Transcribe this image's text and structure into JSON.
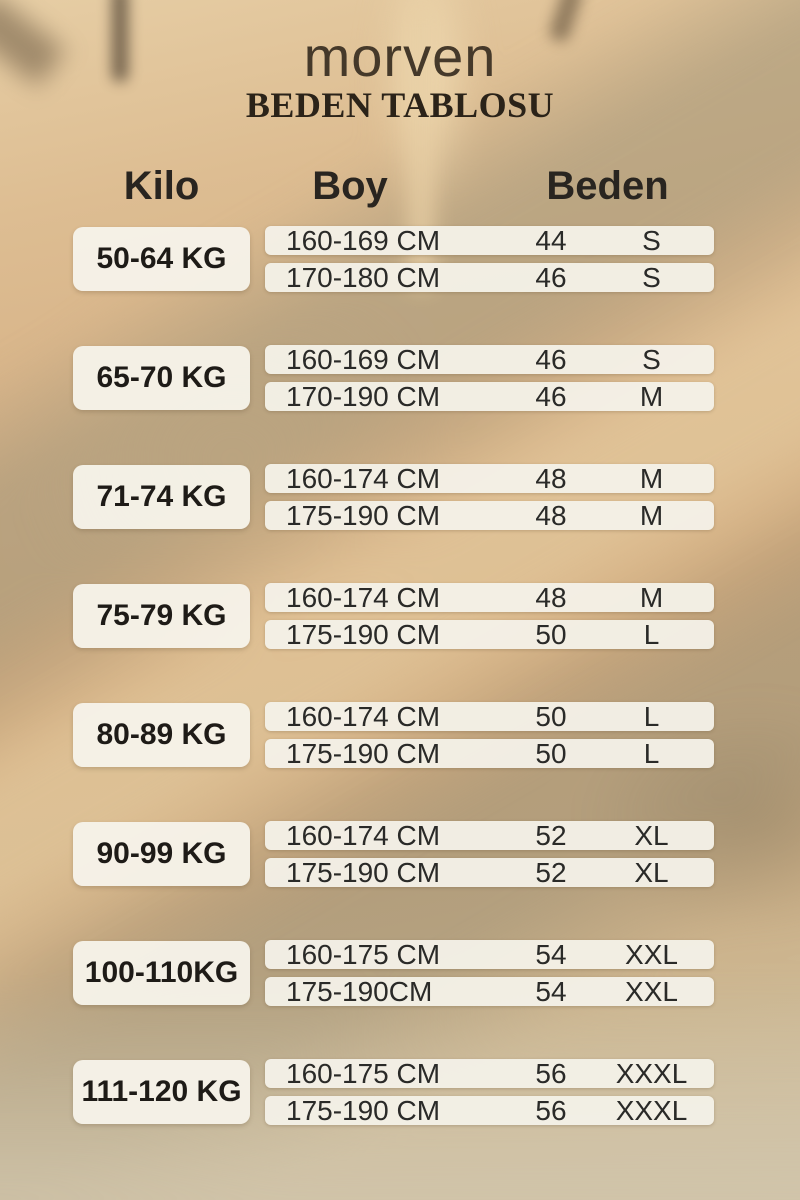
{
  "brand": "morven",
  "title": "BEDEN TABLOSU",
  "columns": {
    "kilo": "Kilo",
    "boy": "Boy",
    "beden": "Beden"
  },
  "table": {
    "headers": [
      "Kilo",
      "Boy",
      "Beden (numeric)",
      "Beden (letter)"
    ],
    "groups": [
      {
        "kilo": "50-64 KG",
        "rows": [
          {
            "boy": "160-169 CM",
            "size": "44",
            "beden": "S"
          },
          {
            "boy": "170-180 CM",
            "size": "46",
            "beden": "S"
          }
        ]
      },
      {
        "kilo": "65-70 KG",
        "rows": [
          {
            "boy": "160-169 CM",
            "size": "46",
            "beden": "S"
          },
          {
            "boy": "170-190 CM",
            "size": "46",
            "beden": "M"
          }
        ]
      },
      {
        "kilo": "71-74 KG",
        "rows": [
          {
            "boy": "160-174 CM",
            "size": "48",
            "beden": "M"
          },
          {
            "boy": "175-190 CM",
            "size": "48",
            "beden": "M"
          }
        ]
      },
      {
        "kilo": "75-79 KG",
        "rows": [
          {
            "boy": "160-174 CM",
            "size": "48",
            "beden": "M"
          },
          {
            "boy": "175-190 CM",
            "size": "50",
            "beden": "L"
          }
        ]
      },
      {
        "kilo": "80-89 KG",
        "rows": [
          {
            "boy": "160-174 CM",
            "size": "50",
            "beden": "L"
          },
          {
            "boy": "175-190 CM",
            "size": "50",
            "beden": "L"
          }
        ]
      },
      {
        "kilo": "90-99 KG",
        "rows": [
          {
            "boy": "160-174 CM",
            "size": "52",
            "beden": "XL"
          },
          {
            "boy": "175-190 CM",
            "size": "52",
            "beden": "XL"
          }
        ]
      },
      {
        "kilo": "100-110KG",
        "rows": [
          {
            "boy": "160-175 CM",
            "size": "54",
            "beden": "XXL"
          },
          {
            "boy": "175-190CM",
            "size": "54",
            "beden": "XXL"
          }
        ]
      },
      {
        "kilo": "111-120 KG",
        "rows": [
          {
            "boy": "160-175 CM",
            "size": "56",
            "beden": "XXXL"
          },
          {
            "boy": "175-190 CM",
            "size": "56",
            "beden": "XXXL"
          }
        ]
      }
    ]
  },
  "colors": {
    "background_tan": "#d4ae80",
    "background_olive": "#a0957b",
    "background_cream": "#e8d2a8",
    "card_offwhite": "#f4f0e7",
    "text_dark": "#2a2520",
    "brand_brown": "#45392a"
  }
}
